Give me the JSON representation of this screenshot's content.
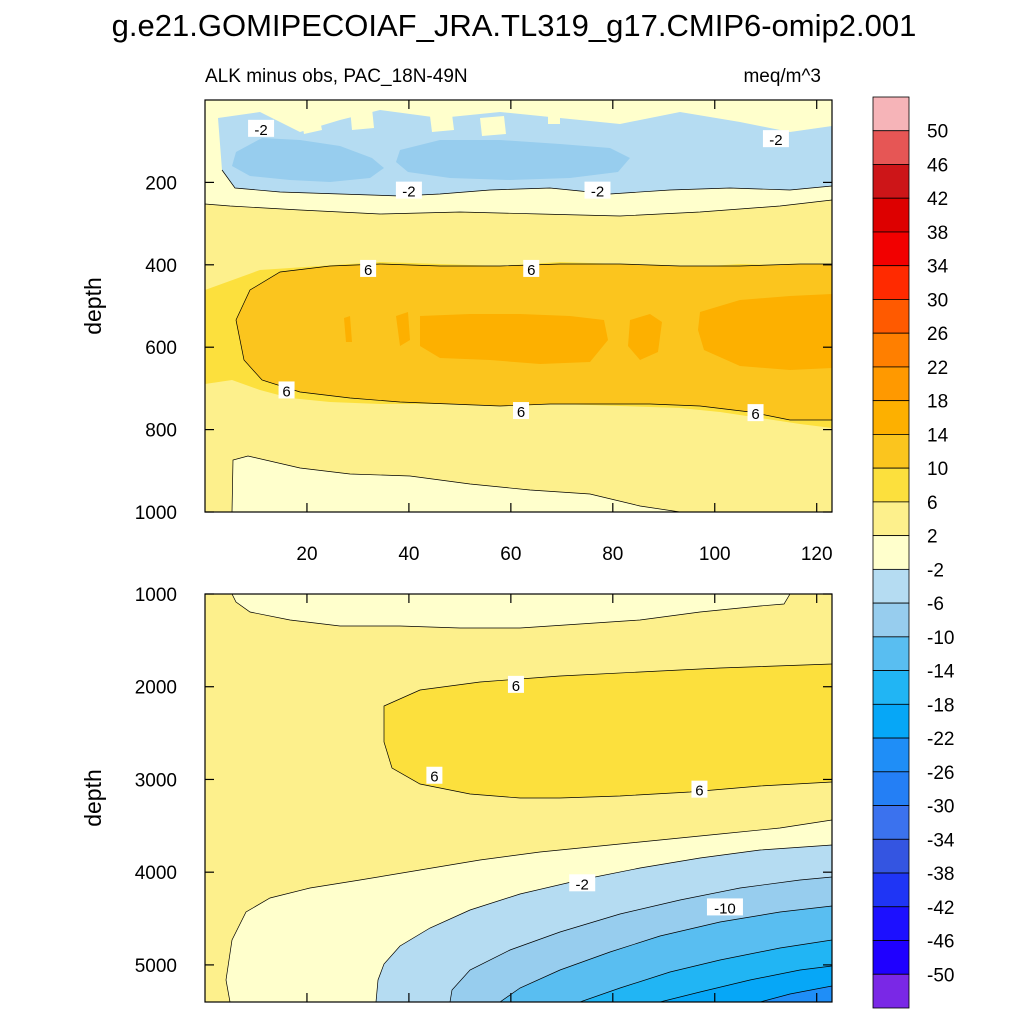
{
  "title": "g.e21.GOMIPECOIAF_JRA.TL319_g17.CMIP6-omip2.001",
  "subtitle_left": "ALK minus obs, PAC_18N-49N",
  "subtitle_right": "meq/m^3",
  "colors": {
    "pos_50": "#f6b4b8",
    "pos_46": "#e65655",
    "pos_42": "#cd1518",
    "pos_38": "#dd0000",
    "pos_34": "#f20000",
    "pos_30": "#ff2a00",
    "pos_26": "#ff5a00",
    "pos_22": "#ff7f00",
    "pos_18": "#ff9900",
    "pos_14": "#fdb000",
    "pos_10": "#fbc51e",
    "pos_6": "#fce03d",
    "pos_2": "#fdf08c",
    "pos_m2": "#ffffcc",
    "neg_6": "#b5dcf2",
    "neg_10": "#97cdee",
    "neg_14": "#59bef1",
    "neg_18": "#21b5f4",
    "neg_22": "#06a7f7",
    "neg_26": "#1f8ef7",
    "neg_30": "#247ff5",
    "neg_34": "#3b72ee",
    "neg_38": "#3455e1",
    "neg_42": "#1f35f5",
    "neg_46": "#1c10ff",
    "neg_50": "#1f00ff",
    "neg_inf": "#7a28e6"
  },
  "chart_data": [
    {
      "type": "contour",
      "panel": "upper",
      "xlabel": "",
      "ylabel": "depth",
      "xlim": [
        0,
        123
      ],
      "ylim": [
        1000,
        0
      ],
      "xticks": [
        20,
        40,
        60,
        80,
        100,
        120
      ],
      "yticks": [
        200,
        400,
        600,
        800,
        1000
      ],
      "contour_labels": [
        {
          "text": "-2",
          "x": 11,
          "y": 70
        },
        {
          "text": "-2",
          "x": 112,
          "y": 95
        },
        {
          "text": "-2",
          "x": 40,
          "y": 220
        },
        {
          "text": "-2",
          "x": 77,
          "y": 220
        },
        {
          "text": "6",
          "x": 32,
          "y": 410
        },
        {
          "text": "6",
          "x": 64,
          "y": 410
        },
        {
          "text": "6",
          "x": 16,
          "y": 705
        },
        {
          "text": "6",
          "x": 62,
          "y": 755
        },
        {
          "text": "6",
          "x": 108,
          "y": 760
        }
      ]
    },
    {
      "type": "contour",
      "panel": "lower",
      "xlabel": "",
      "ylabel": "depth",
      "xlim": [
        0,
        123
      ],
      "ylim": [
        5400,
        1000
      ],
      "xticks": [],
      "yticks": [
        1000,
        2000,
        3000,
        4000,
        5000
      ],
      "contour_labels": [
        {
          "text": "6",
          "x": 61,
          "y": 1980
        },
        {
          "text": "6",
          "x": 45,
          "y": 2960
        },
        {
          "text": "6",
          "x": 97,
          "y": 3110
        },
        {
          "text": "-2",
          "x": 74,
          "y": 4120
        },
        {
          "text": "-10",
          "x": 102,
          "y": 4380
        }
      ]
    }
  ],
  "colorbar": {
    "levels": [
      "50",
      "46",
      "42",
      "38",
      "34",
      "30",
      "26",
      "22",
      "18",
      "14",
      "10",
      "6",
      "2",
      "-2",
      "-6",
      "-10",
      "-14",
      "-18",
      "-22",
      "-26",
      "-30",
      "-34",
      "-38",
      "-42",
      "-46",
      "-50"
    ]
  }
}
